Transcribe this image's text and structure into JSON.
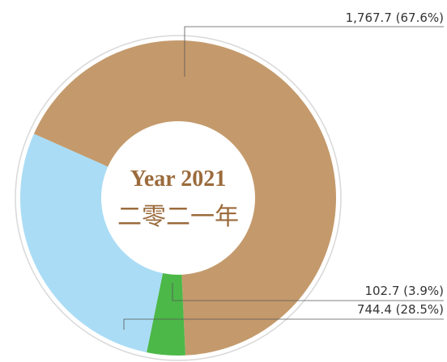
{
  "chart_data": {
    "type": "donut",
    "center_text": [
      "Year 2021",
      "二零二一年"
    ],
    "categories": [
      null,
      null,
      null
    ],
    "values": [
      1767.7,
      102.7,
      744.4
    ],
    "value_labels": [
      "1,767.7 (67.6%)",
      "102.7 (3.9%)",
      "744.4 (28.5%)"
    ],
    "colors": [
      "#c49a6c",
      "#4cb848",
      "#aadcf5"
    ]
  }
}
